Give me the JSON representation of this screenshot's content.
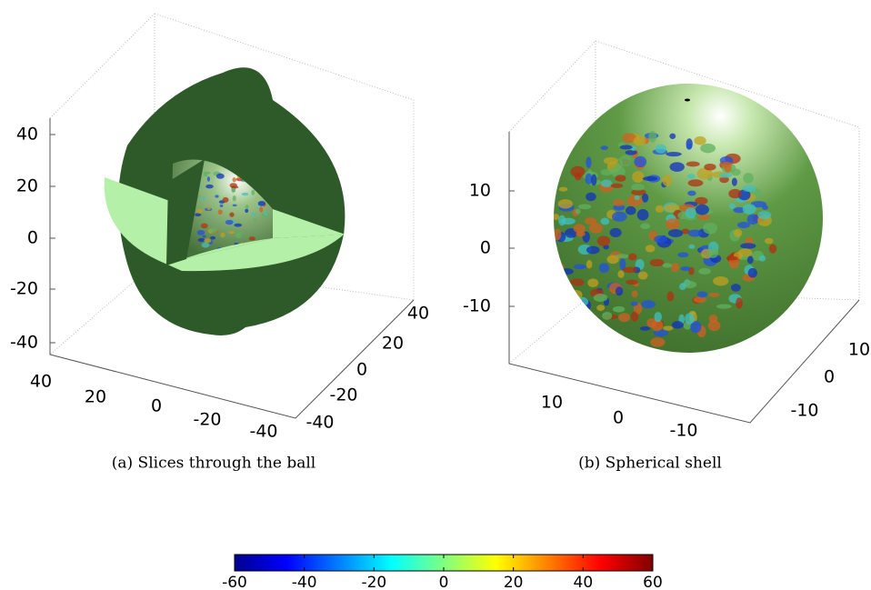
{
  "panels": [
    {
      "caption": "(a) Slices through the ball",
      "z_ticks": [
        40,
        20,
        0,
        -20,
        -40
      ],
      "x_ticks": [
        40,
        20,
        0,
        -20,
        -40
      ],
      "y_ticks": [
        40,
        20,
        0,
        -20,
        -40
      ]
    },
    {
      "caption": "(b) Spherical shell",
      "z_ticks": [
        10,
        0,
        -10
      ],
      "x_ticks": [
        10,
        0,
        -10
      ],
      "y_ticks": [
        10,
        0,
        -10
      ]
    }
  ],
  "colorbar": {
    "lim": [
      -60,
      60
    ],
    "ticks": [
      -60,
      -40,
      -20,
      0,
      20,
      40,
      60
    ]
  }
}
